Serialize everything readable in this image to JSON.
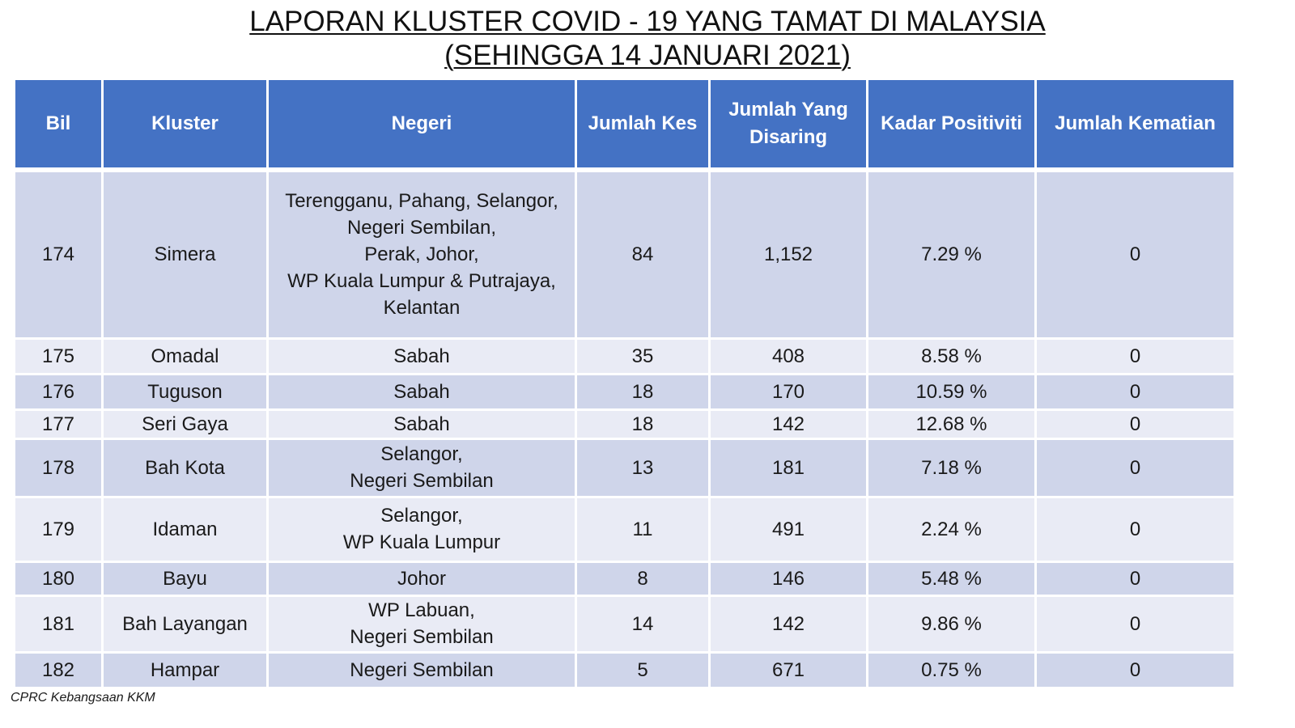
{
  "title": {
    "line1": "LAPORAN KLUSTER COVID - 19 YANG TAMAT DI MALAYSIA",
    "line2": "(SEHINGGA 14 JANUARI 2021)"
  },
  "headers": {
    "bil": "Bil",
    "kluster": "Kluster",
    "negeri": "Negeri",
    "jumlah_kes": "Jumlah Kes",
    "jumlah_disaring_line1": "Jumlah Yang",
    "jumlah_disaring_line2": "Disaring",
    "kadar_positiviti": "Kadar Positiviti",
    "jumlah_kematian": "Jumlah Kematian"
  },
  "rows": [
    {
      "bil": "174",
      "kluster": "Simera",
      "negeri": [
        "Terengganu, Pahang, Selangor,",
        "Negeri Sembilan,",
        "Perak, Johor,",
        "WP Kuala Lumpur & Putrajaya,",
        "Kelantan"
      ],
      "jumlah_kes": "84",
      "jumlah_disaring": "1,152",
      "kadar_positiviti": "7.29 %",
      "jumlah_kematian": "0"
    },
    {
      "bil": "175",
      "kluster": "Omadal",
      "negeri": [
        "Sabah"
      ],
      "jumlah_kes": "35",
      "jumlah_disaring": "408",
      "kadar_positiviti": "8.58 %",
      "jumlah_kematian": "0"
    },
    {
      "bil": "176",
      "kluster": "Tuguson",
      "negeri": [
        "Sabah"
      ],
      "jumlah_kes": "18",
      "jumlah_disaring": "170",
      "kadar_positiviti": "10.59 %",
      "jumlah_kematian": "0"
    },
    {
      "bil": "177",
      "kluster": "Seri Gaya",
      "negeri": [
        "Sabah"
      ],
      "jumlah_kes": "18",
      "jumlah_disaring": "142",
      "kadar_positiviti": "12.68 %",
      "jumlah_kematian": "0"
    },
    {
      "bil": "178",
      "kluster": "Bah Kota",
      "negeri": [
        "Selangor,",
        "Negeri Sembilan"
      ],
      "jumlah_kes": "13",
      "jumlah_disaring": "181",
      "kadar_positiviti": "7.18 %",
      "jumlah_kematian": "0"
    },
    {
      "bil": "179",
      "kluster": "Idaman",
      "negeri": [
        "Selangor,",
        "WP Kuala Lumpur"
      ],
      "jumlah_kes": "11",
      "jumlah_disaring": "491",
      "kadar_positiviti": "2.24 %",
      "jumlah_kematian": "0"
    },
    {
      "bil": "180",
      "kluster": "Bayu",
      "negeri": [
        "Johor"
      ],
      "jumlah_kes": "8",
      "jumlah_disaring": "146",
      "kadar_positiviti": "5.48 %",
      "jumlah_kematian": "0"
    },
    {
      "bil": "181",
      "kluster": "Bah Layangan",
      "negeri": [
        "WP Labuan,",
        "Negeri Sembilan"
      ],
      "jumlah_kes": "14",
      "jumlah_disaring": "142",
      "kadar_positiviti": "9.86 %",
      "jumlah_kematian": "0"
    },
    {
      "bil": "182",
      "kluster": "Hampar",
      "negeri": [
        "Negeri Sembilan"
      ],
      "jumlah_kes": "5",
      "jumlah_disaring": "671",
      "kadar_positiviti": "0.75 %",
      "jumlah_kematian": "0"
    }
  ],
  "footer": "CPRC Kebangsaan KKM",
  "colors": {
    "header_bg": "#4472c4",
    "header_text": "#ffffff",
    "row_dark": "#cfd5ea",
    "row_light": "#e9ebf5"
  }
}
